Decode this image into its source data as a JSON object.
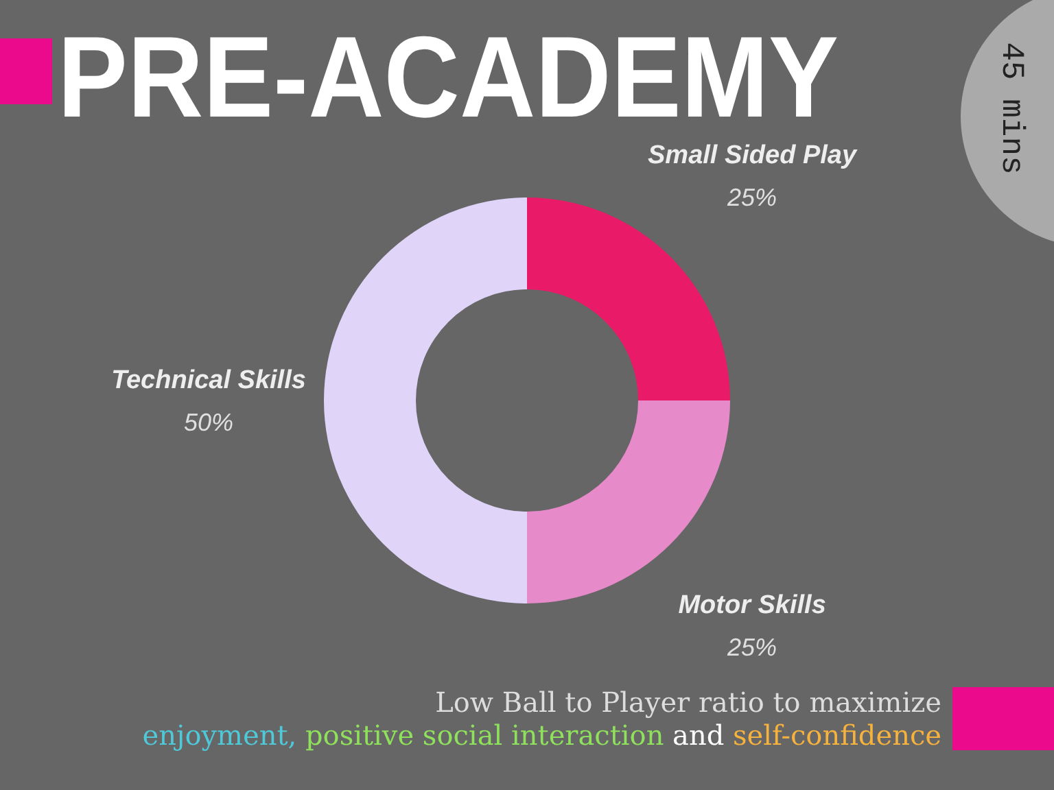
{
  "chart_data": {
    "type": "donut",
    "title": "PRE-ACADEMY",
    "categories": [
      "Small Sided Play",
      "Motor Skills",
      "Technical Skills"
    ],
    "values": [
      25,
      25,
      50
    ],
    "colors": [
      "#e91b68",
      "#e68aca",
      "#e0d4f8"
    ],
    "value_labels": [
      "25%",
      "25%",
      "50%"
    ],
    "annotations": [
      "45 mins",
      "Low Ball to Player ratio to maximize",
      "enjoyment,",
      "positive social interaction",
      "and",
      "self-confidence"
    ]
  }
}
